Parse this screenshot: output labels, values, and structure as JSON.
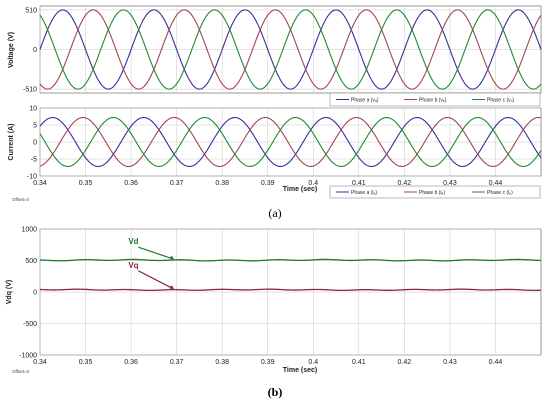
{
  "chart_data": [
    {
      "id": "voltage",
      "type": "line",
      "ylabel": "Voltage   (V)",
      "y_ticks": [
        "510",
        "0",
        "-510"
      ],
      "y_tick_values": [
        510,
        0,
        -510
      ],
      "ylim": [
        -560,
        560
      ],
      "xlim": [
        0.34,
        0.45
      ],
      "grid": true,
      "legend_position": "bottom-right",
      "series": [
        {
          "name": "Phase a (vₐ)",
          "color": "#3a2e9c",
          "amplitude": 510,
          "frequency_hz": 50,
          "phase_deg": 0
        },
        {
          "name": "Phase b (vₑ)",
          "color": "#a0445a",
          "amplitude": 510,
          "frequency_hz": 50,
          "phase_deg": -120
        },
        {
          "name": "Phase c (vₒ)",
          "color": "#1f8a2e",
          "amplitude": 510,
          "frequency_hz": 50,
          "phase_deg": 120
        }
      ]
    },
    {
      "id": "current",
      "type": "line",
      "ylabel": "Current   (A)",
      "xlabel": "Time (sec)",
      "y_ticks": [
        "10",
        "5",
        "0",
        "-5",
        "-10"
      ],
      "y_tick_values": [
        10,
        5,
        0,
        -5,
        -10
      ],
      "ylim": [
        -10,
        10
      ],
      "xlim": [
        0.34,
        0.45
      ],
      "x_ticks": [
        "0.34",
        "0.35",
        "0.36",
        "0.37",
        "0.38",
        "0.39",
        "0.4",
        "0.41",
        "0.42",
        "0.43",
        "0.44"
      ],
      "x_tick_values": [
        0.34,
        0.35,
        0.36,
        0.37,
        0.38,
        0.39,
        0.4,
        0.41,
        0.42,
        0.43,
        0.44
      ],
      "grid": true,
      "legend_position": "bottom-right",
      "offset_label": "Offset=0",
      "series": [
        {
          "name": "Phase a (iₐ)",
          "color": "#3a2e9c",
          "amplitude": 7.2,
          "frequency_hz": 50,
          "phase_deg": 40
        },
        {
          "name": "Phase b (iₑ)",
          "color": "#a0445a",
          "amplitude": 7.2,
          "frequency_hz": 50,
          "phase_deg": -80
        },
        {
          "name": "Phase c (iₒ)",
          "color": "#1f8a2e",
          "amplitude": 7.2,
          "frequency_hz": 50,
          "phase_deg": 160
        }
      ]
    },
    {
      "id": "vdq",
      "type": "line",
      "ylabel": "Vdq   (V)",
      "xlabel": "Time (sec)",
      "y_ticks": [
        "1000",
        "500",
        "0",
        "-500",
        "-1000"
      ],
      "y_tick_values": [
        1000,
        500,
        0,
        -500,
        -1000
      ],
      "ylim": [
        -1000,
        1000
      ],
      "xlim": [
        0.34,
        0.45
      ],
      "x_ticks": [
        "0.34",
        "0.35",
        "0.36",
        "0.37",
        "0.38",
        "0.39",
        "0.4",
        "0.41",
        "0.42",
        "0.43",
        "0.44"
      ],
      "x_tick_values": [
        0.34,
        0.35,
        0.36,
        0.37,
        0.38,
        0.39,
        0.4,
        0.41,
        0.42,
        0.43,
        0.44
      ],
      "grid": true,
      "offset_label": "Offset=0",
      "series": [
        {
          "name": "Vd",
          "color": "#1f7a2a",
          "level": 505,
          "ripple": 12
        },
        {
          "name": "Vq",
          "color": "#8a2a3a",
          "level": 35,
          "ripple": 10
        }
      ],
      "annotations": [
        {
          "text": "Vd",
          "color": "#1f7a2a",
          "points_to_x": 0.3695,
          "points_to_y": 505
        },
        {
          "text": "Vq",
          "color": "#8a2a3a",
          "points_to_x": 0.3695,
          "points_to_y": 35
        }
      ]
    }
  ],
  "captions": {
    "a": "(a)",
    "b": "(b)"
  }
}
